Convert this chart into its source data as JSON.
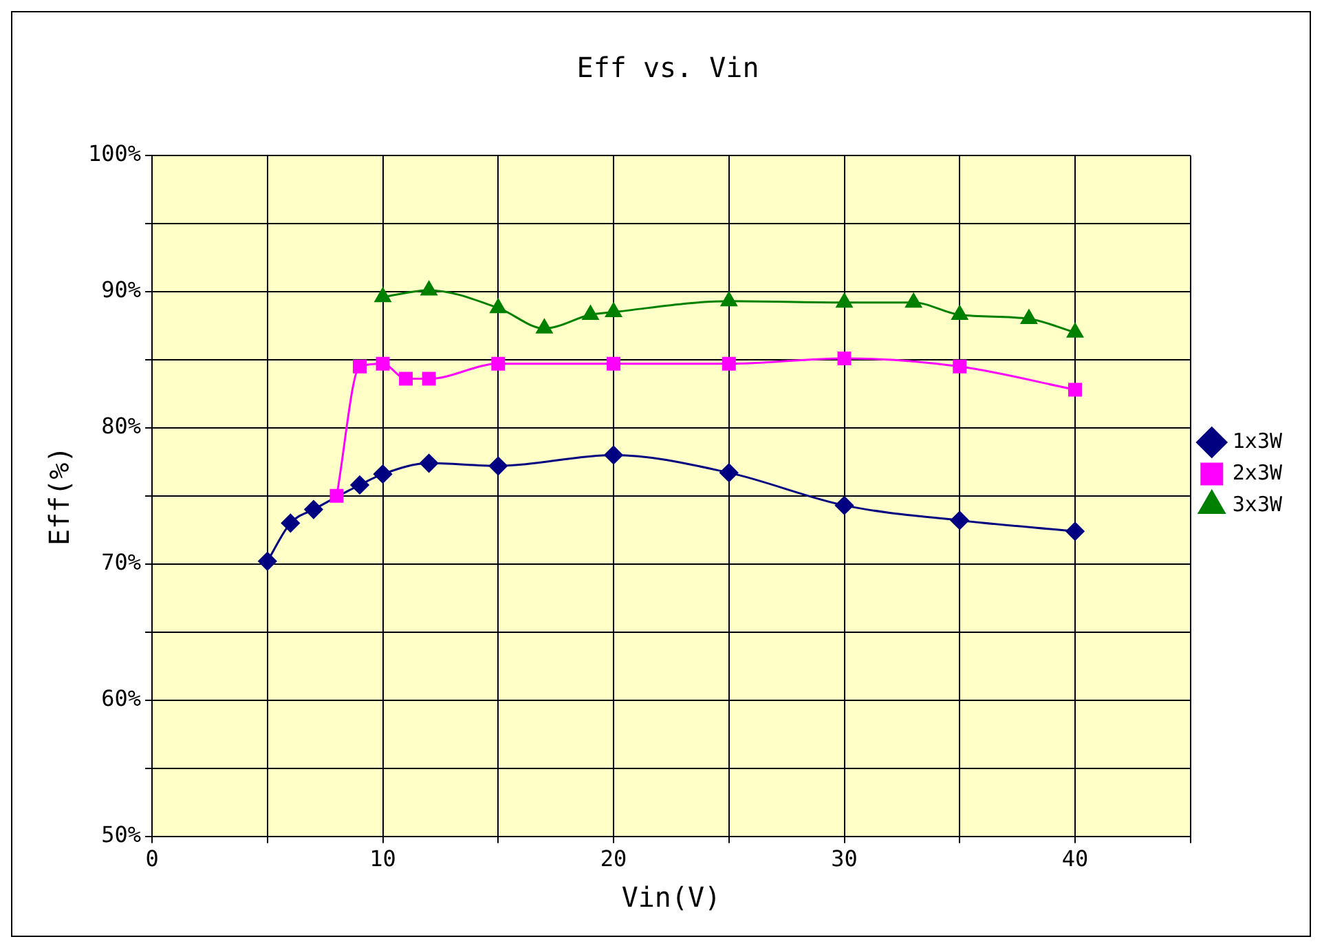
{
  "chart_data": {
    "type": "line",
    "title": "Eff vs. Vin",
    "xlabel": "Vin(V)",
    "ylabel": "Eff(%)",
    "xlim": [
      0,
      45
    ],
    "xticks": [
      0,
      {
        "value": 5,
        "label": null
      },
      10,
      {
        "value": 15,
        "label": null
      },
      20,
      {
        "value": 25,
        "label": null
      },
      30,
      {
        "value": 35,
        "label": null
      },
      40,
      {
        "value": 45,
        "label": null
      }
    ],
    "ylim": [
      50,
      100
    ],
    "yticks": [
      {
        "value": 50,
        "label": "50%"
      },
      {
        "value": 55,
        "label": null
      },
      {
        "value": 60,
        "label": "60%"
      },
      {
        "value": 65,
        "label": null
      },
      {
        "value": 70,
        "label": "70%"
      },
      {
        "value": 75,
        "label": null
      },
      {
        "value": 80,
        "label": "80%"
      },
      {
        "value": 85,
        "label": null
      },
      {
        "value": 90,
        "label": "90%"
      },
      {
        "value": 95,
        "label": null
      },
      {
        "value": 100,
        "label": "100%"
      }
    ],
    "grid": true,
    "legend": "right",
    "series": [
      {
        "name": "1x3W",
        "color": "#000080",
        "marker": "diamond",
        "x": [
          5,
          6,
          7,
          9,
          10,
          12,
          15,
          20,
          25,
          30,
          35,
          40
        ],
        "values": [
          70.2,
          73.0,
          74.0,
          75.8,
          76.6,
          77.4,
          77.2,
          78.0,
          76.7,
          74.3,
          73.2,
          72.4
        ]
      },
      {
        "name": "2x3W",
        "color": "#ff00ff",
        "marker": "square",
        "x": [
          8,
          9,
          10,
          11,
          12,
          15,
          20,
          25,
          30,
          35,
          40
        ],
        "values": [
          75.0,
          84.5,
          84.7,
          83.6,
          83.6,
          84.7,
          84.7,
          84.7,
          85.1,
          84.5,
          82.8
        ]
      },
      {
        "name": "3x3W",
        "color": "#008000",
        "marker": "triangle",
        "x": [
          10,
          12,
          15,
          17,
          19,
          20,
          25,
          30,
          33,
          35,
          38,
          40
        ],
        "values": [
          89.6,
          90.1,
          88.8,
          87.3,
          88.3,
          88.5,
          89.3,
          89.2,
          89.2,
          88.3,
          88.0,
          87.0
        ]
      }
    ]
  }
}
